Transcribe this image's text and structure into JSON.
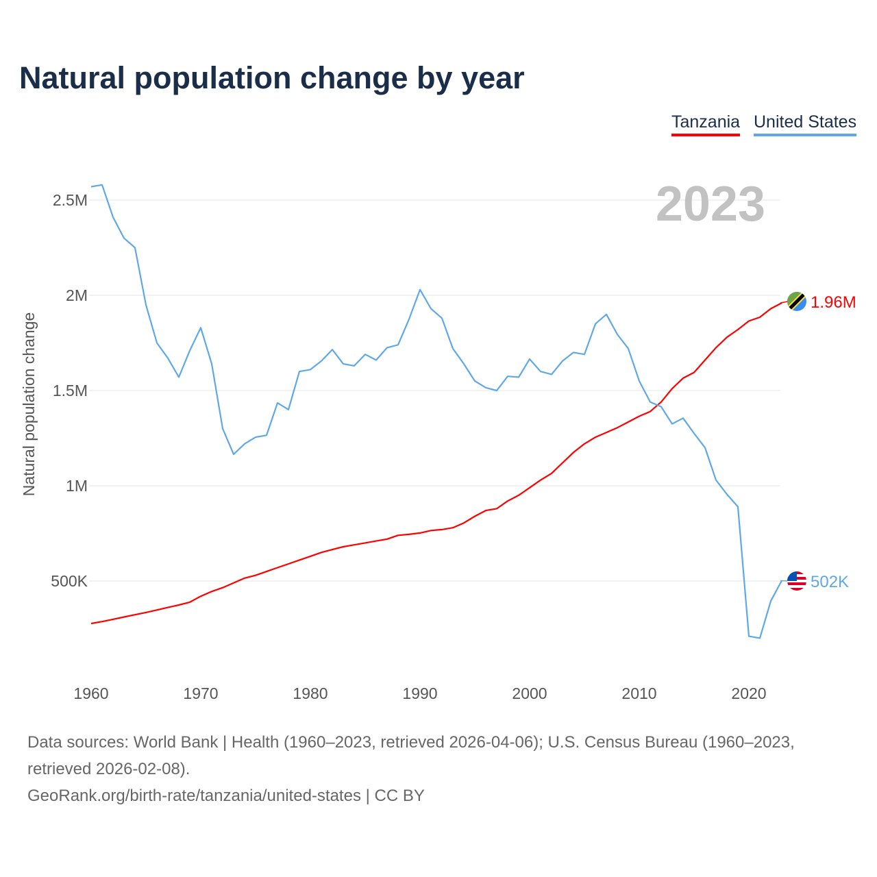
{
  "title": "Natural population change by year",
  "legend": [
    "Tanzania",
    "United States"
  ],
  "year_label": "2023",
  "footer": {
    "sources": "Data sources: World Bank | Health (1960–2023, retrieved 2026-04-06); U.S. Census Bureau (1960–2023, retrieved 2026-02-08).",
    "link": "GeoRank.org/birth-rate/tanzania/united-states | CC BY"
  },
  "chart_data": {
    "type": "line",
    "title": "Natural population change by year",
    "xlabel": "",
    "ylabel": "Natural population change",
    "xlim": [
      1960,
      2023
    ],
    "ylim": [
      0,
      2700000
    ],
    "grid": true,
    "legend_position": "top-right",
    "x_ticks": [
      1960,
      1970,
      1980,
      1990,
      2000,
      2010,
      2020
    ],
    "x_tick_labels": [
      "1960",
      "1970",
      "1980",
      "1990",
      "2000",
      "2010",
      "2020"
    ],
    "y_ticks": [
      500000,
      1000000,
      1500000,
      2000000,
      2500000
    ],
    "y_tick_labels": [
      "500K",
      "1M",
      "1.5M",
      "2M",
      "2.5M"
    ],
    "x_start": 1960,
    "series": [
      {
        "name": "Tanzania",
        "color": "#ff0000",
        "end_label": "1.96M",
        "flag": "tanzania-flag",
        "values": [
          0.277,
          0.287,
          0.299,
          0.311,
          0.323,
          0.335,
          0.348,
          0.361,
          0.374,
          0.389,
          0.42,
          0.445,
          0.465,
          0.49,
          0.515,
          0.53,
          0.55,
          0.57,
          0.59,
          0.61,
          0.63,
          0.65,
          0.665,
          0.68,
          0.69,
          0.7,
          0.71,
          0.72,
          0.74,
          0.745,
          0.752,
          0.765,
          0.77,
          0.78,
          0.805,
          0.84,
          0.87,
          0.88,
          0.92,
          0.95,
          0.99,
          1.03,
          1.065,
          1.12,
          1.175,
          1.22,
          1.255,
          1.28,
          1.305,
          1.335,
          1.365,
          1.39,
          1.44,
          1.51,
          1.565,
          1.595,
          1.66,
          1.725,
          1.78,
          1.82,
          1.865,
          1.885,
          1.93,
          1.96
        ]
      },
      {
        "name": "United States",
        "color": "#5fa8e8",
        "end_label": "502K",
        "flag": "us-flag",
        "values": [
          2.57,
          2.58,
          2.41,
          2.3,
          2.25,
          1.95,
          1.75,
          1.67,
          1.57,
          1.71,
          1.83,
          1.64,
          1.3,
          1.165,
          1.22,
          1.255,
          1.265,
          1.435,
          1.4,
          1.6,
          1.61,
          1.655,
          1.715,
          1.64,
          1.63,
          1.69,
          1.66,
          1.725,
          1.74,
          1.875,
          2.03,
          1.93,
          1.88,
          1.72,
          1.64,
          1.55,
          1.515,
          1.5,
          1.575,
          1.57,
          1.665,
          1.6,
          1.585,
          1.655,
          1.7,
          1.69,
          1.85,
          1.9,
          1.795,
          1.72,
          1.55,
          1.44,
          1.415,
          1.325,
          1.355,
          1.275,
          1.2,
          1.03,
          0.955,
          0.89,
          0.21,
          0.2,
          0.395,
          0.502
        ]
      }
    ],
    "value_unit_multiplier": 1000000
  }
}
